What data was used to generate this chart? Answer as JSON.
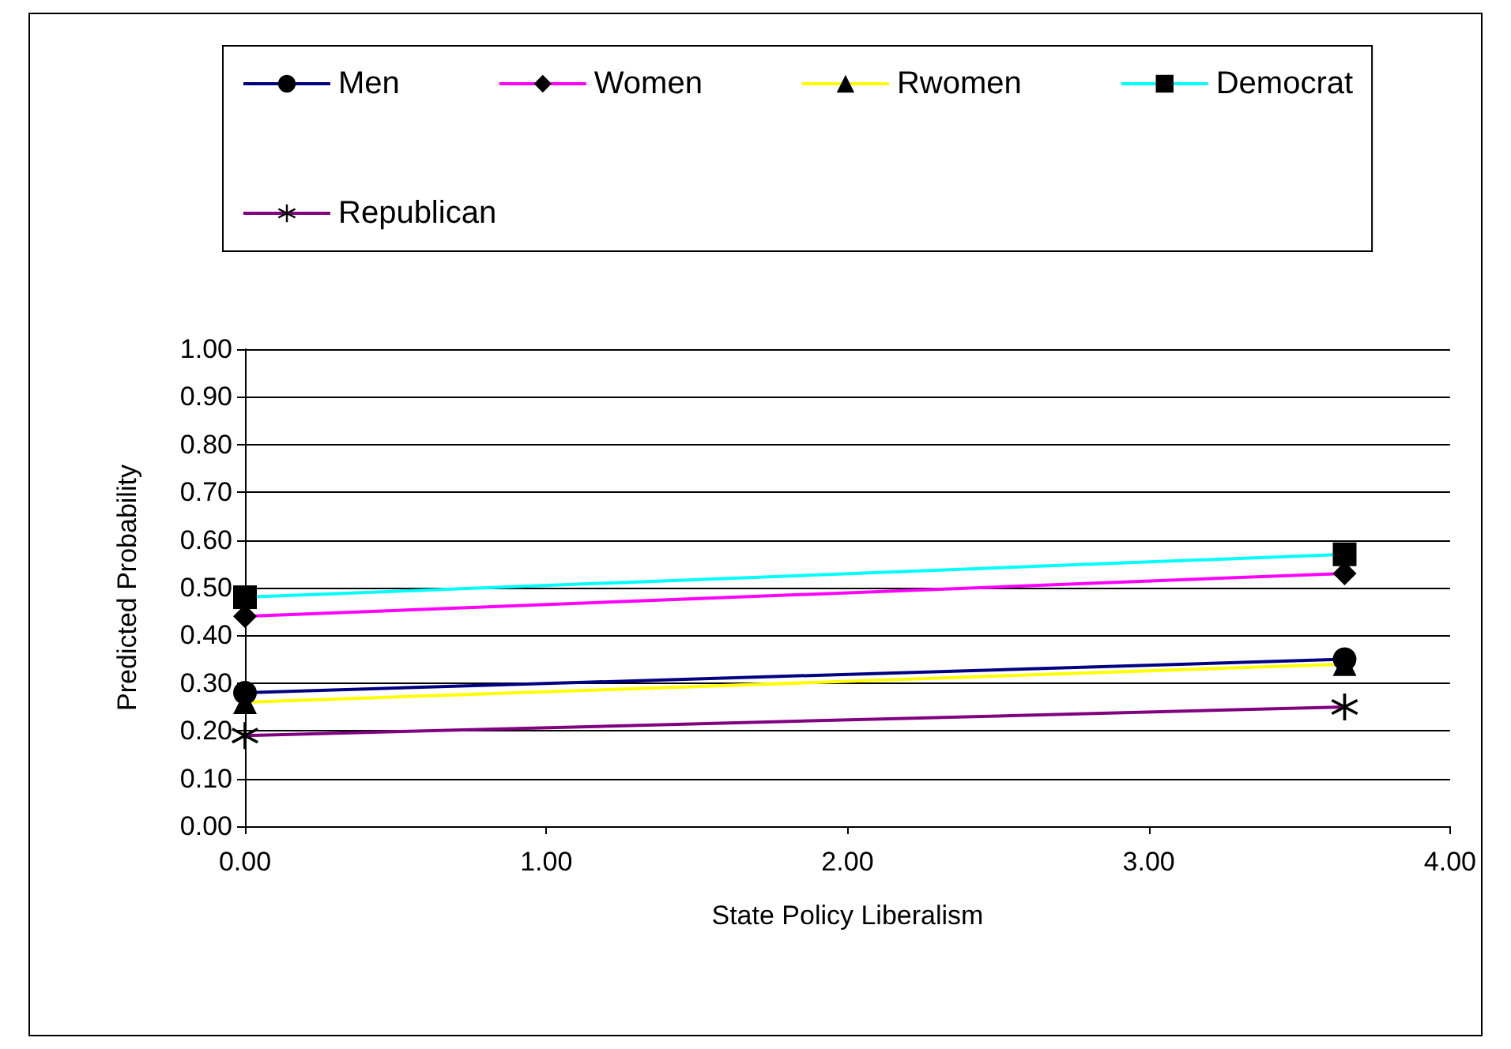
{
  "chart_data": {
    "type": "line",
    "xlabel": "State Policy Liberalism",
    "ylabel": "Predicted Probability",
    "x": [
      0,
      3.65
    ],
    "series": [
      {
        "name": "Men",
        "color": "#000080",
        "marker": "circle",
        "values": [
          0.28,
          0.35
        ]
      },
      {
        "name": "Women",
        "color": "#ff00ff",
        "marker": "diamond",
        "values": [
          0.44,
          0.53
        ]
      },
      {
        "name": "Rwomen",
        "color": "#ffff00",
        "marker": "triangle",
        "values": [
          0.26,
          0.34
        ]
      },
      {
        "name": "Democrat",
        "color": "#00ffff",
        "marker": "square",
        "values": [
          0.48,
          0.57
        ]
      },
      {
        "name": "Republican",
        "color": "#800080",
        "marker": "cross",
        "values": [
          0.19,
          0.25
        ]
      }
    ],
    "xlim": [
      0,
      4
    ],
    "xticks": [
      {
        "value": 0,
        "label": "0.00"
      },
      {
        "value": 1,
        "label": "1.00"
      },
      {
        "value": 2,
        "label": "2.00"
      },
      {
        "value": 3,
        "label": "3.00"
      },
      {
        "value": 4,
        "label": "4.00"
      }
    ],
    "ylim": [
      0,
      1
    ],
    "yticks": [
      {
        "value": 0,
        "label": "0.00"
      },
      {
        "value": 0.1,
        "label": "0.10"
      },
      {
        "value": 0.2,
        "label": "0.20"
      },
      {
        "value": 0.3,
        "label": "0.30"
      },
      {
        "value": 0.4,
        "label": "0.40"
      },
      {
        "value": 0.5,
        "label": "0.50"
      },
      {
        "value": 0.6,
        "label": "0.60"
      },
      {
        "value": 0.7,
        "label": "0.70"
      },
      {
        "value": 0.8,
        "label": "0.80"
      },
      {
        "value": 0.9,
        "label": "0.90"
      },
      {
        "value": 1,
        "label": "1.00"
      }
    ],
    "grid": "y",
    "legend": "top",
    "line_style": "solid"
  }
}
